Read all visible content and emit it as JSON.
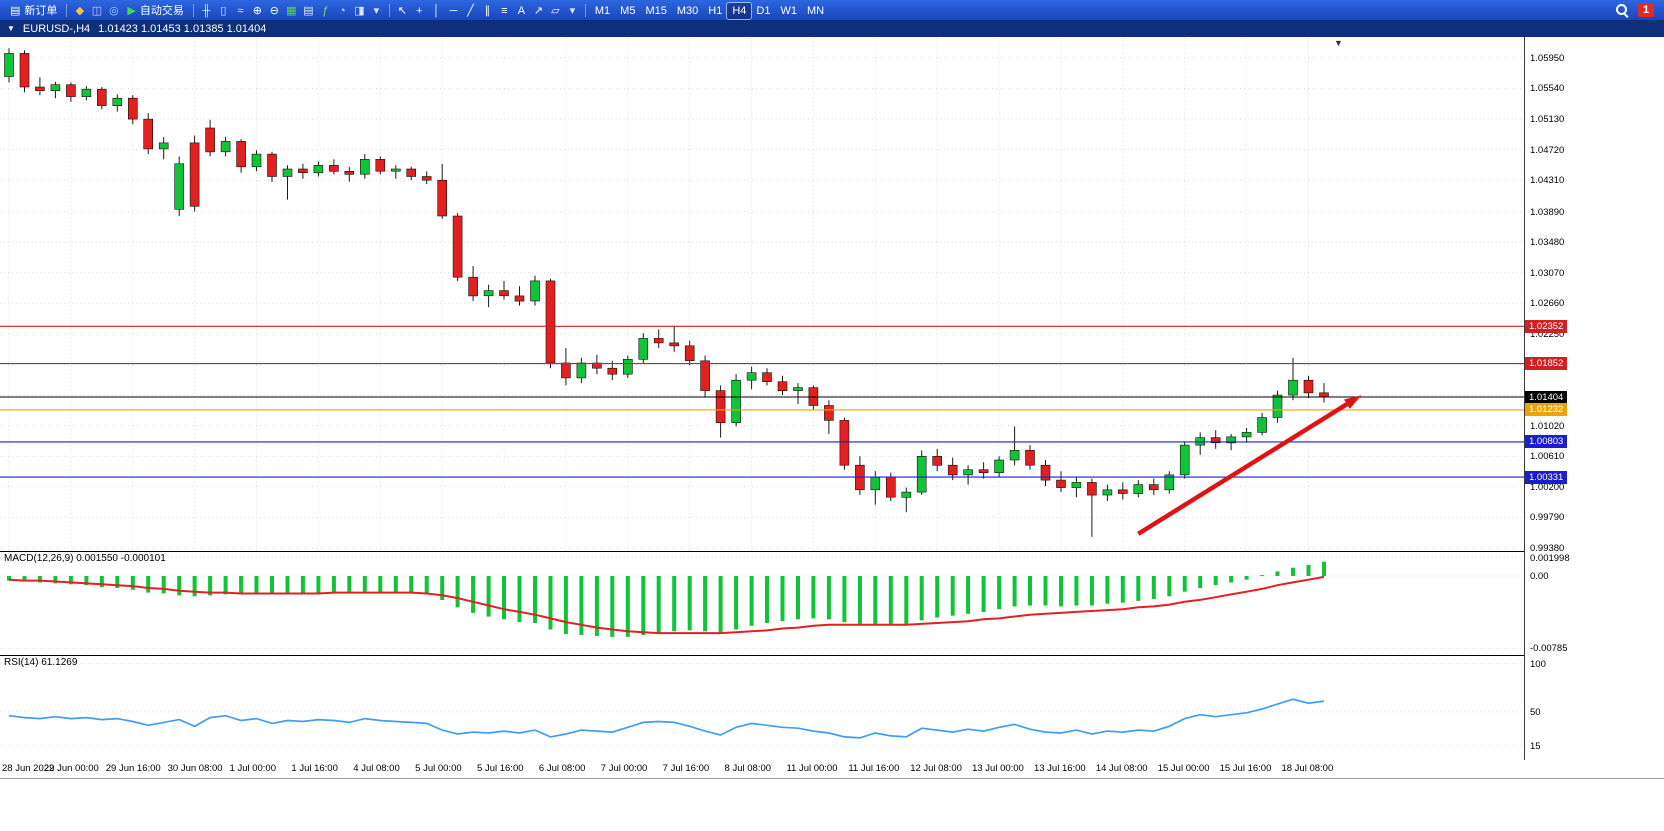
{
  "toolbar": {
    "new_order_label": "新订单",
    "new_order_icon": "▤",
    "auto_trading_label": "自动交易",
    "auto_trading_icon": "▶",
    "timeframes": [
      "M1",
      "M5",
      "M15",
      "M30",
      "H1",
      "H4",
      "D1",
      "W1",
      "MN"
    ],
    "active_timeframe": "H4",
    "notification_count": "1",
    "icon_groups": {
      "account": [
        {
          "name": "deposit-gold-icon",
          "glyph": "◆",
          "color": "#f2c744"
        },
        {
          "name": "accounts-icon",
          "glyph": "◫",
          "color": "#bcd2ff"
        },
        {
          "name": "support-icon",
          "glyph": "◎",
          "color": "#9fd4ff"
        }
      ],
      "chart": [
        {
          "name": "bar-chart-icon",
          "glyph": "╫",
          "color": "#dbe6ff"
        },
        {
          "name": "candlestick-chart-icon",
          "glyph": "▯",
          "color": "#dbe6ff"
        },
        {
          "name": "line-chart-icon",
          "glyph": "≈",
          "color": "#dbe6ff"
        },
        {
          "name": "zoom-in-icon",
          "glyph": "⊕",
          "color": "#ffffff"
        },
        {
          "name": "zoom-out-icon",
          "glyph": "⊖",
          "color": "#ffffff"
        },
        {
          "name": "grid-icon",
          "glyph": "▦",
          "color": "#57d657"
        },
        {
          "name": "chart-list-icon",
          "glyph": "▤",
          "color": "#dbe6ff"
        },
        {
          "name": "indicators-icon",
          "glyph": "ƒ",
          "color": "#79e079"
        },
        {
          "name": "timeframe-clock-icon",
          "glyph": "◔",
          "color": "#cfe0ff"
        },
        {
          "name": "template-icon",
          "glyph": "◨",
          "color": "#dbe6ff"
        },
        {
          "name": "chevron-down-icon",
          "glyph": "▾",
          "color": "#dfe8ff"
        }
      ],
      "draw": [
        {
          "name": "cursor-icon",
          "glyph": "↖",
          "color": "#ffffff"
        },
        {
          "name": "crosshair-icon",
          "glyph": "+",
          "color": "#ffffff"
        },
        {
          "name": "vertical-line-icon",
          "glyph": "│",
          "color": "#ffffff"
        },
        {
          "name": "horizontal-line-icon",
          "glyph": "─",
          "color": "#ffffff"
        },
        {
          "name": "trendline-icon",
          "glyph": "╱",
          "color": "#ffffff"
        },
        {
          "name": "channel-icon",
          "glyph": "∥",
          "color": "#ffffff"
        },
        {
          "name": "fibonacci-icon",
          "glyph": "≡",
          "color": "#ffffff"
        },
        {
          "name": "text-label-icon",
          "glyph": "A",
          "color": "#ffffff"
        },
        {
          "name": "arrow-objects-icon",
          "glyph": "↗",
          "color": "#ffffff"
        },
        {
          "name": "shapes-icon",
          "glyph": "▱",
          "color": "#ffffff"
        },
        {
          "name": "chevron-down-icon",
          "glyph": "▾",
          "color": "#dfe8ff"
        }
      ]
    }
  },
  "icons": {
    "header_caret": "▼",
    "shift_marker": "▼"
  },
  "colors": {
    "candle_up": "#0fc437",
    "candle_down": "#e32020",
    "macd_signal": "#e32020",
    "rsi_line": "#3f9ef2",
    "toolbar_bg": "#1f50c8",
    "header_bg": "#0d2f7c",
    "grid": "#dcdcdc",
    "arrow": "#e01313"
  },
  "chart_data": [
    {
      "type": "candlestick",
      "title": "EURUSD-,H4",
      "symbol": "EURUSD",
      "timeframe": "H4",
      "ohlc_display": "1.01423 1.01453 1.01385 1.01404",
      "current_price": 1.01404,
      "ylim": [
        0.9934,
        1.0623
      ],
      "price_ticks": [
        "1.05950",
        "1.05540",
        "1.05130",
        "1.04720",
        "1.04310",
        "1.03890",
        "1.03480",
        "1.03070",
        "1.02660",
        "1.02250",
        "1.01840",
        "1.01430",
        "1.01020",
        "1.00610",
        "1.00200",
        "0.99790",
        "0.99380"
      ],
      "time_ticks": [
        "28 Jun 2022",
        "29 Jun 00:00",
        "29 Jun 16:00",
        "30 Jun 08:00",
        "1 Jul 00:00",
        "1 Jul 16:00",
        "4 Jul 08:00",
        "5 Jul 00:00",
        "5 Jul 16:00",
        "6 Jul 08:00",
        "7 Jul 00:00",
        "7 Jul 16:00",
        "8 Jul 08:00",
        "11 Jul 00:00",
        "11 Jul 16:00",
        "12 Jul 08:00",
        "13 Jul 00:00",
        "13 Jul 16:00",
        "14 Jul 08:00",
        "15 Jul 00:00",
        "15 Jul 16:00",
        "18 Jul 08:00"
      ],
      "candles": [
        [
          1.057,
          1.0608,
          1.0562,
          1.0601
        ],
        [
          1.0601,
          1.0605,
          1.0549,
          1.0556
        ],
        [
          1.0556,
          1.0569,
          1.0545,
          1.0551
        ],
        [
          1.0551,
          1.0563,
          1.0541,
          1.0559
        ],
        [
          1.0559,
          1.0562,
          1.0536,
          1.0543
        ],
        [
          1.0543,
          1.0557,
          1.0538,
          1.0553
        ],
        [
          1.0553,
          1.0556,
          1.0526,
          1.0531
        ],
        [
          1.0531,
          1.0546,
          1.0523,
          1.0541
        ],
        [
          1.0541,
          1.0545,
          1.0506,
          1.0513
        ],
        [
          1.0513,
          1.0521,
          1.0466,
          1.0473
        ],
        [
          1.0473,
          1.0489,
          1.0459,
          1.0481
        ],
        [
          1.0392,
          1.0463,
          1.0383,
          1.0453
        ],
        [
          1.0481,
          1.0491,
          1.0389,
          1.0396
        ],
        [
          1.0501,
          1.0512,
          1.0463,
          1.0469
        ],
        [
          1.0469,
          1.0489,
          1.0463,
          1.0483
        ],
        [
          1.0483,
          1.0486,
          1.0441,
          1.0449
        ],
        [
          1.0449,
          1.0471,
          1.0443,
          1.0466
        ],
        [
          1.0466,
          1.0469,
          1.0429,
          1.0436
        ],
        [
          1.0436,
          1.0451,
          1.0405,
          1.0446
        ],
        [
          1.0446,
          1.0453,
          1.0433,
          1.0441
        ],
        [
          1.0441,
          1.0456,
          1.0436,
          1.0451
        ],
        [
          1.0451,
          1.0459,
          1.0439,
          1.0443
        ],
        [
          1.0443,
          1.0449,
          1.0429,
          1.0439
        ],
        [
          1.0439,
          1.0466,
          1.0433,
          1.0459
        ],
        [
          1.0459,
          1.0463,
          1.0439,
          1.0443
        ],
        [
          1.0443,
          1.0451,
          1.0433,
          1.0446
        ],
        [
          1.0446,
          1.0449,
          1.0431,
          1.0436
        ],
        [
          1.0436,
          1.0443,
          1.0426,
          1.0431
        ],
        [
          1.0431,
          1.0453,
          1.0379,
          1.0383
        ],
        [
          1.0383,
          1.0387,
          1.0296,
          1.0301
        ],
        [
          1.0301,
          1.0316,
          1.0269,
          1.0276
        ],
        [
          1.0276,
          1.0291,
          1.0261,
          1.0283
        ],
        [
          1.0283,
          1.0296,
          1.0271,
          1.0276
        ],
        [
          1.0276,
          1.0289,
          1.0263,
          1.0269
        ],
        [
          1.0269,
          1.0303,
          1.0263,
          1.0296
        ],
        [
          1.0296,
          1.0299,
          1.0179,
          1.0186
        ],
        [
          1.0186,
          1.0206,
          1.0156,
          1.0166
        ],
        [
          1.0166,
          1.0193,
          1.0159,
          1.0186
        ],
        [
          1.0186,
          1.0197,
          1.0171,
          1.0179
        ],
        [
          1.0179,
          1.0189,
          1.0163,
          1.0171
        ],
        [
          1.0171,
          1.0196,
          1.0166,
          1.0191
        ],
        [
          1.0191,
          1.0226,
          1.0186,
          1.0219
        ],
        [
          1.0219,
          1.0231,
          1.0206,
          1.0213
        ],
        [
          1.0213,
          1.0236,
          1.0201,
          1.0209
        ],
        [
          1.0209,
          1.0216,
          1.0183,
          1.0189
        ],
        [
          1.0189,
          1.0196,
          1.0141,
          1.0149
        ],
        [
          1.0149,
          1.0156,
          1.0086,
          1.0106
        ],
        [
          1.0106,
          1.0171,
          1.0101,
          1.0163
        ],
        [
          1.0163,
          1.0181,
          1.0151,
          1.0173
        ],
        [
          1.0173,
          1.0179,
          1.0156,
          1.0161
        ],
        [
          1.0161,
          1.0169,
          1.0143,
          1.0149
        ],
        [
          1.0149,
          1.0159,
          1.0131,
          1.0153
        ],
        [
          1.0153,
          1.0156,
          1.0123,
          1.0129
        ],
        [
          1.0129,
          1.0136,
          1.0091,
          1.0109
        ],
        [
          1.0109,
          1.0113,
          1.0043,
          1.0049
        ],
        [
          1.0049,
          1.0061,
          1.0009,
          1.0016
        ],
        [
          1.0016,
          1.0041,
          0.9996,
          1.0033
        ],
        [
          1.0033,
          1.0039,
          1.0001,
          1.0006
        ],
        [
          1.0006,
          1.0019,
          0.9986,
          1.0013
        ],
        [
          1.0013,
          1.0069,
          1.0009,
          1.0061
        ],
        [
          1.0061,
          1.0071,
          1.0041,
          1.0049
        ],
        [
          1.0049,
          1.0059,
          1.0029,
          1.0036
        ],
        [
          1.0036,
          1.0049,
          1.0023,
          1.0043
        ],
        [
          1.0043,
          1.0053,
          1.0031,
          1.0039
        ],
        [
          1.0039,
          1.0061,
          1.0033,
          1.0056
        ],
        [
          1.0056,
          1.0101,
          1.0049,
          1.0069
        ],
        [
          1.0069,
          1.0076,
          1.0043,
          1.0049
        ],
        [
          1.0049,
          1.0056,
          1.0021,
          1.0029
        ],
        [
          1.0029,
          1.0041,
          1.0013,
          1.0019
        ],
        [
          1.0019,
          1.0033,
          1.0006,
          1.0026
        ],
        [
          1.0026,
          1.0031,
          0.9953,
          1.0009
        ],
        [
          1.0009,
          1.0023,
          1.0001,
          1.0016
        ],
        [
          1.0016,
          1.0026,
          1.0003,
          1.0011
        ],
        [
          1.0011,
          1.0029,
          1.0006,
          1.0023
        ],
        [
          1.0023,
          1.0031,
          1.0009,
          1.0016
        ],
        [
          1.0016,
          1.0041,
          1.0011,
          1.0036
        ],
        [
          1.0036,
          1.0081,
          1.0031,
          1.0076
        ],
        [
          1.0076,
          1.0093,
          1.0063,
          1.0086
        ],
        [
          1.0086,
          1.0096,
          1.0071,
          1.0079
        ],
        [
          1.0079,
          1.0091,
          1.0069,
          1.0087
        ],
        [
          1.0087,
          1.0099,
          1.0079,
          1.0093
        ],
        [
          1.0093,
          1.0119,
          1.0089,
          1.0113
        ],
        [
          1.0113,
          1.0149,
          1.0106,
          1.0143
        ],
        [
          1.0143,
          1.0193,
          1.0136,
          1.0163
        ],
        [
          1.0163,
          1.0169,
          1.0139,
          1.0146
        ],
        [
          1.0146,
          1.0159,
          1.0133,
          1.01404
        ]
      ],
      "hlines": [
        {
          "price": 1.02352,
          "label": "1.02352",
          "color": "#d02020"
        },
        {
          "price": 1.01852,
          "label": "1.01852",
          "color": "#d02020"
        },
        {
          "price": 1.01404,
          "label": "1.01404",
          "color": "#000000"
        },
        {
          "price": 1.01232,
          "label": "1.01232",
          "color": "#e8a50a"
        },
        {
          "price": 1.00803,
          "label": "1.00803",
          "color": "#1c1cd0"
        },
        {
          "price": 1.00331,
          "label": "1.00331",
          "color": "#1c1cd0"
        }
      ],
      "arrow": {
        "from": {
          "index": 73,
          "price": 0.9957
        },
        "to": {
          "index": 87.2,
          "price": 1.014
        },
        "color": "#e01313"
      }
    },
    {
      "type": "bar",
      "name": "MACD",
      "label": "MACD(12,26,9) 0.001550 -0.000101",
      "values_display": [
        "0.001550",
        "-0.000101"
      ],
      "ylim": [
        -0.00857,
        0.0026
      ],
      "axis": [
        {
          "value": 0.001998,
          "label": "0.001998"
        },
        {
          "value": 0,
          "label": "0.00"
        },
        {
          "value": -0.00785,
          "label": "-0.00785"
        }
      ],
      "histogram": [
        -0.0005,
        -0.0006,
        -0.0007,
        -0.0008,
        -0.0009,
        -0.001,
        -0.0012,
        -0.0013,
        -0.0015,
        -0.0018,
        -0.0019,
        -0.0021,
        -0.0022,
        -0.0021,
        -0.002,
        -0.002,
        -0.0019,
        -0.002,
        -0.002,
        -0.0019,
        -0.0018,
        -0.0018,
        -0.0017,
        -0.0017,
        -0.0018,
        -0.0018,
        -0.0019,
        -0.002,
        -0.0026,
        -0.0034,
        -0.004,
        -0.0044,
        -0.0047,
        -0.005,
        -0.0051,
        -0.0058,
        -0.0063,
        -0.0064,
        -0.0065,
        -0.0066,
        -0.0066,
        -0.0064,
        -0.0062,
        -0.006,
        -0.0059,
        -0.006,
        -0.0062,
        -0.0058,
        -0.0054,
        -0.0051,
        -0.0049,
        -0.0047,
        -0.0046,
        -0.0047,
        -0.005,
        -0.0052,
        -0.0052,
        -0.0052,
        -0.0052,
        -0.0048,
        -0.0045,
        -0.0043,
        -0.0041,
        -0.0039,
        -0.0036,
        -0.0033,
        -0.0032,
        -0.0032,
        -0.0033,
        -0.0032,
        -0.0032,
        -0.003,
        -0.0029,
        -0.0027,
        -0.0025,
        -0.0022,
        -0.0017,
        -0.0013,
        -0.001,
        -0.0007,
        -0.0004,
        0.0001,
        0.0005,
        0.0009,
        0.0012,
        0.00155
      ],
      "signal": [
        -0.0004,
        -0.0005,
        -0.0005,
        -0.0006,
        -0.0007,
        -0.0008,
        -0.0009,
        -0.001,
        -0.0011,
        -0.0013,
        -0.0014,
        -0.0016,
        -0.0017,
        -0.0018,
        -0.0018,
        -0.0019,
        -0.0019,
        -0.0019,
        -0.0019,
        -0.0019,
        -0.0019,
        -0.0018,
        -0.0018,
        -0.0018,
        -0.0018,
        -0.0018,
        -0.0018,
        -0.0019,
        -0.0021,
        -0.0024,
        -0.0028,
        -0.0032,
        -0.0036,
        -0.0039,
        -0.0042,
        -0.0046,
        -0.005,
        -0.0053,
        -0.0056,
        -0.0058,
        -0.006,
        -0.0061,
        -0.0062,
        -0.0062,
        -0.0062,
        -0.0062,
        -0.0062,
        -0.0061,
        -0.006,
        -0.0059,
        -0.0057,
        -0.0056,
        -0.0054,
        -0.0053,
        -0.0053,
        -0.0053,
        -0.0053,
        -0.0053,
        -0.0053,
        -0.0052,
        -0.0051,
        -0.005,
        -0.0049,
        -0.0047,
        -0.0046,
        -0.0044,
        -0.0042,
        -0.0041,
        -0.004,
        -0.0039,
        -0.0038,
        -0.0037,
        -0.0036,
        -0.0034,
        -0.0033,
        -0.0031,
        -0.0028,
        -0.0026,
        -0.0023,
        -0.002,
        -0.0017,
        -0.0014,
        -0.001,
        -0.0007,
        -0.0004,
        -0.000101
      ]
    },
    {
      "type": "line",
      "name": "RSI",
      "label": "RSI(14) 61.1269",
      "current_value": 61.1269,
      "ylim": [
        0,
        100
      ],
      "axis": [
        {
          "value": 100,
          "label": "100"
        },
        {
          "value": 50,
          "label": "50"
        },
        {
          "value": 15,
          "label": "15"
        }
      ],
      "values": [
        46,
        44,
        43,
        45,
        43,
        44,
        42,
        43,
        40,
        36,
        39,
        42,
        35,
        44,
        46,
        41,
        43,
        38,
        41,
        40,
        42,
        41,
        39,
        43,
        41,
        40,
        39,
        38,
        31,
        27,
        29,
        28,
        30,
        28,
        31,
        24,
        27,
        31,
        30,
        29,
        34,
        39,
        40,
        39,
        35,
        30,
        26,
        34,
        38,
        36,
        34,
        33,
        30,
        28,
        24,
        23,
        28,
        25,
        24,
        33,
        31,
        29,
        32,
        30,
        34,
        37,
        32,
        29,
        28,
        31,
        27,
        30,
        29,
        31,
        30,
        35,
        43,
        47,
        45,
        47,
        49,
        53,
        58,
        63,
        59,
        61.13
      ]
    }
  ]
}
